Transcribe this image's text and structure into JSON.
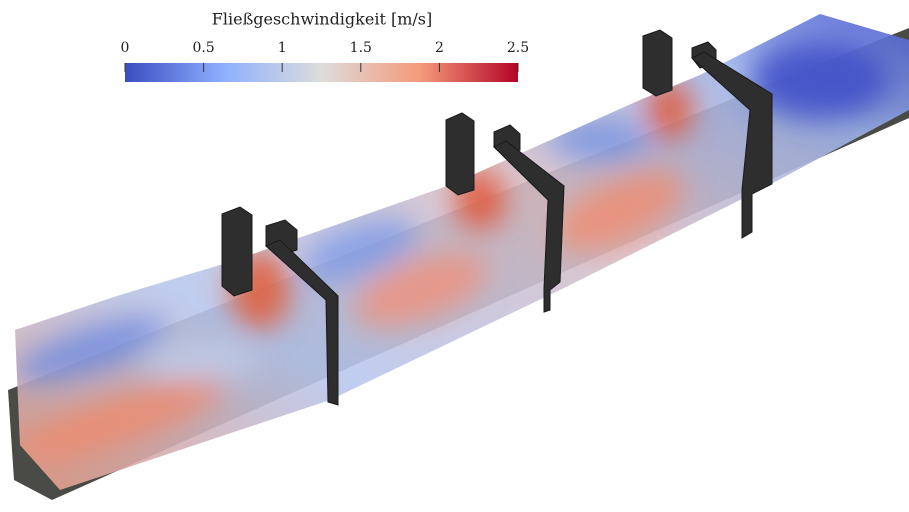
{
  "colorbar": {
    "title": "Fließgeschwindigkeit [m/s]",
    "lim": [
      0,
      2.5
    ],
    "ticks": [
      0,
      0.5,
      1,
      1.5,
      2,
      2.5
    ],
    "colors": [
      "#3b4cc0",
      "#8db0fe",
      "#dddcdc",
      "#f49a7b",
      "#b40426"
    ]
  }
}
